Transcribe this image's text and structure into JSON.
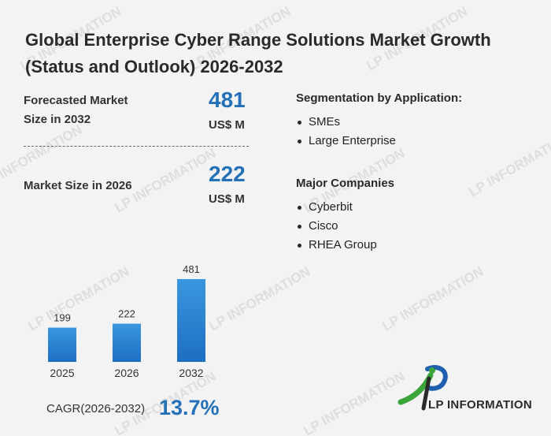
{
  "title": "Global Enterprise Cyber Range Solutions Market Growth (Status and Outlook) 2026-2032",
  "forecast": {
    "label_line1": "Forecasted Market",
    "label_line2": "Size in 2032",
    "value": "481",
    "unit": "US$ M"
  },
  "current": {
    "label": "Market Size in 2026",
    "value": "222",
    "unit": "US$ M"
  },
  "segmentation": {
    "title": "Segmentation by Application:",
    "items": [
      "SMEs",
      "Large Enterprise"
    ]
  },
  "companies": {
    "title": "Major Companies",
    "items": [
      "Cyberbit",
      "Cisco",
      "RHEA Group"
    ]
  },
  "cagr": {
    "label": "CAGR(2026-2032)",
    "value": "13.7%"
  },
  "logo": {
    "text": "LP INFORMATION",
    "watermark_text": "LP INFORMATION"
  },
  "colors": {
    "accent": "#2471b8",
    "bar_top": "#3a97e0",
    "bar_bottom": "#1d6fc0",
    "logo_green": "#3aa63a",
    "logo_blue": "#1f5fb0"
  },
  "chart_data": {
    "type": "bar",
    "categories": [
      "2025",
      "2026",
      "2032"
    ],
    "values": [
      199,
      222,
      481
    ],
    "title": "",
    "xlabel": "",
    "ylabel": "",
    "ylim": [
      0,
      481
    ]
  }
}
